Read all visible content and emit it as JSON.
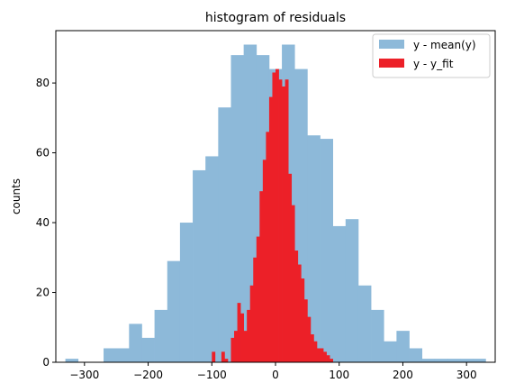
{
  "chart_data": {
    "type": "bar",
    "title": "histogram of residuals",
    "xlabel": "",
    "ylabel": "counts",
    "xlim": [
      -345,
      345
    ],
    "ylim": [
      0,
      95
    ],
    "xticks": [
      -300,
      -200,
      -100,
      0,
      100,
      200,
      300
    ],
    "yticks": [
      0,
      20,
      40,
      60,
      80
    ],
    "xtick_labels": [
      "−300",
      "−200",
      "−100",
      "0",
      "100",
      "200",
      "300"
    ],
    "ytick_labels": [
      "0",
      "20",
      "40",
      "60",
      "80"
    ],
    "grid": false,
    "legend_position": "top-right",
    "series": [
      {
        "name": "y - mean(y)",
        "color": "#8db9d9",
        "bin_edges": [
          -330,
          -310,
          -290,
          -270,
          -250,
          -230,
          -210,
          -190,
          -170,
          -150,
          -130,
          -110,
          -90,
          -70,
          -50,
          -30,
          -10,
          10,
          30,
          50,
          70,
          90,
          110,
          130,
          150,
          170,
          190,
          210,
          230,
          250,
          270,
          290,
          310,
          330
        ],
        "counts": [
          1,
          0,
          0,
          4,
          4,
          11,
          7,
          15,
          29,
          40,
          55,
          59,
          73,
          88,
          91,
          88,
          84,
          91,
          84,
          65,
          64,
          39,
          41,
          22,
          15,
          6,
          9,
          4,
          1,
          1,
          1,
          1,
          1
        ]
      },
      {
        "name": "y - y_fit",
        "color": "#ec2028",
        "bin_edges": [
          -100,
          -95,
          -90,
          -85,
          -80,
          -75,
          -70,
          -65,
          -60,
          -55,
          -50,
          -45,
          -40,
          -35,
          -30,
          -25,
          -20,
          -15,
          -10,
          -5,
          0,
          5,
          10,
          15,
          20,
          25,
          30,
          35,
          40,
          45,
          50,
          55,
          60,
          65,
          70,
          75,
          80,
          85,
          90
        ],
        "counts": [
          3,
          0,
          0,
          3,
          1,
          0,
          7,
          9,
          17,
          14,
          9,
          15,
          22,
          30,
          36,
          49,
          58,
          66,
          76,
          83,
          84,
          81,
          79,
          81,
          54,
          45,
          32,
          28,
          24,
          18,
          13,
          8,
          6,
          4,
          4,
          3,
          2,
          1
        ]
      }
    ]
  }
}
